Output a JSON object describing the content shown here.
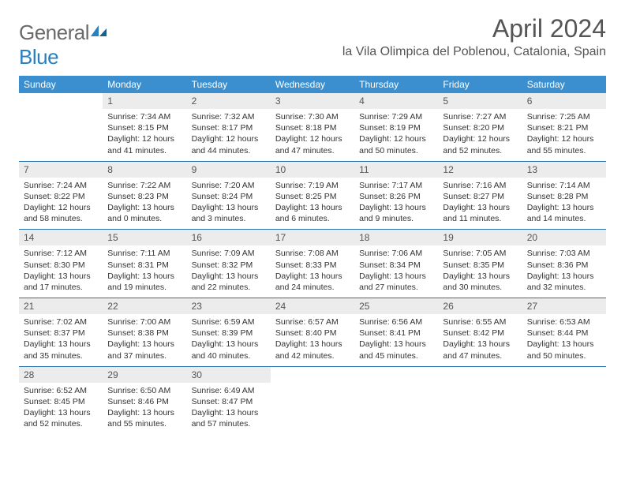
{
  "logo": {
    "general": "General",
    "blue": "Blue"
  },
  "title": "April 2024",
  "location": "la Vila Olimpica del Poblenou, Catalonia, Spain",
  "colors": {
    "header_bg": "#3b8fce",
    "header_text": "#ffffff",
    "row_border": "#2a6fa8",
    "daynum_bg": "#ececec",
    "text": "#333333",
    "title_text": "#555555",
    "logo_gray": "#6a6a6a",
    "logo_blue": "#2a7fbf"
  },
  "weekdays": [
    "Sunday",
    "Monday",
    "Tuesday",
    "Wednesday",
    "Thursday",
    "Friday",
    "Saturday"
  ],
  "labels": {
    "sunrise": "Sunrise:",
    "sunset": "Sunset:",
    "daylight": "Daylight:"
  },
  "days": {
    "1": {
      "sunrise": "7:34 AM",
      "sunset": "8:15 PM",
      "daylight": "12 hours and 41 minutes."
    },
    "2": {
      "sunrise": "7:32 AM",
      "sunset": "8:17 PM",
      "daylight": "12 hours and 44 minutes."
    },
    "3": {
      "sunrise": "7:30 AM",
      "sunset": "8:18 PM",
      "daylight": "12 hours and 47 minutes."
    },
    "4": {
      "sunrise": "7:29 AM",
      "sunset": "8:19 PM",
      "daylight": "12 hours and 50 minutes."
    },
    "5": {
      "sunrise": "7:27 AM",
      "sunset": "8:20 PM",
      "daylight": "12 hours and 52 minutes."
    },
    "6": {
      "sunrise": "7:25 AM",
      "sunset": "8:21 PM",
      "daylight": "12 hours and 55 minutes."
    },
    "7": {
      "sunrise": "7:24 AM",
      "sunset": "8:22 PM",
      "daylight": "12 hours and 58 minutes."
    },
    "8": {
      "sunrise": "7:22 AM",
      "sunset": "8:23 PM",
      "daylight": "13 hours and 0 minutes."
    },
    "9": {
      "sunrise": "7:20 AM",
      "sunset": "8:24 PM",
      "daylight": "13 hours and 3 minutes."
    },
    "10": {
      "sunrise": "7:19 AM",
      "sunset": "8:25 PM",
      "daylight": "13 hours and 6 minutes."
    },
    "11": {
      "sunrise": "7:17 AM",
      "sunset": "8:26 PM",
      "daylight": "13 hours and 9 minutes."
    },
    "12": {
      "sunrise": "7:16 AM",
      "sunset": "8:27 PM",
      "daylight": "13 hours and 11 minutes."
    },
    "13": {
      "sunrise": "7:14 AM",
      "sunset": "8:28 PM",
      "daylight": "13 hours and 14 minutes."
    },
    "14": {
      "sunrise": "7:12 AM",
      "sunset": "8:30 PM",
      "daylight": "13 hours and 17 minutes."
    },
    "15": {
      "sunrise": "7:11 AM",
      "sunset": "8:31 PM",
      "daylight": "13 hours and 19 minutes."
    },
    "16": {
      "sunrise": "7:09 AM",
      "sunset": "8:32 PM",
      "daylight": "13 hours and 22 minutes."
    },
    "17": {
      "sunrise": "7:08 AM",
      "sunset": "8:33 PM",
      "daylight": "13 hours and 24 minutes."
    },
    "18": {
      "sunrise": "7:06 AM",
      "sunset": "8:34 PM",
      "daylight": "13 hours and 27 minutes."
    },
    "19": {
      "sunrise": "7:05 AM",
      "sunset": "8:35 PM",
      "daylight": "13 hours and 30 minutes."
    },
    "20": {
      "sunrise": "7:03 AM",
      "sunset": "8:36 PM",
      "daylight": "13 hours and 32 minutes."
    },
    "21": {
      "sunrise": "7:02 AM",
      "sunset": "8:37 PM",
      "daylight": "13 hours and 35 minutes."
    },
    "22": {
      "sunrise": "7:00 AM",
      "sunset": "8:38 PM",
      "daylight": "13 hours and 37 minutes."
    },
    "23": {
      "sunrise": "6:59 AM",
      "sunset": "8:39 PM",
      "daylight": "13 hours and 40 minutes."
    },
    "24": {
      "sunrise": "6:57 AM",
      "sunset": "8:40 PM",
      "daylight": "13 hours and 42 minutes."
    },
    "25": {
      "sunrise": "6:56 AM",
      "sunset": "8:41 PM",
      "daylight": "13 hours and 45 minutes."
    },
    "26": {
      "sunrise": "6:55 AM",
      "sunset": "8:42 PM",
      "daylight": "13 hours and 47 minutes."
    },
    "27": {
      "sunrise": "6:53 AM",
      "sunset": "8:44 PM",
      "daylight": "13 hours and 50 minutes."
    },
    "28": {
      "sunrise": "6:52 AM",
      "sunset": "8:45 PM",
      "daylight": "13 hours and 52 minutes."
    },
    "29": {
      "sunrise": "6:50 AM",
      "sunset": "8:46 PM",
      "daylight": "13 hours and 55 minutes."
    },
    "30": {
      "sunrise": "6:49 AM",
      "sunset": "8:47 PM",
      "daylight": "13 hours and 57 minutes."
    }
  },
  "layout": {
    "first_weekday_index": 1,
    "num_days": 30,
    "rows": 5
  }
}
